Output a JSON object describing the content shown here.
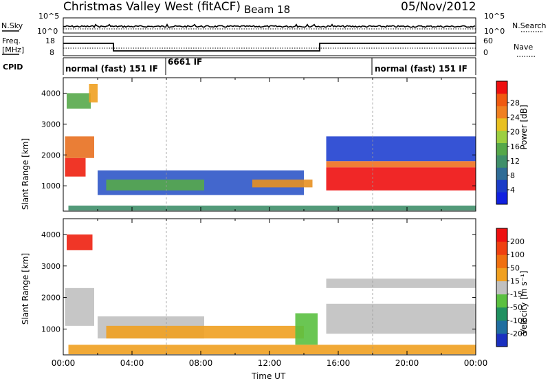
{
  "header": {
    "site": "Christmas Valley West (fitACF)",
    "beam": "Beam 18",
    "date": "05/Nov/2012"
  },
  "noise_panel": {
    "left_label": "N.Sky",
    "right_label": "N.Search",
    "ytick_top": "10^5",
    "ytick_bottom": "10^0"
  },
  "freq_panel": {
    "left_label_1": "Freq.",
    "left_label_2": "[MHz]",
    "right_label": "Nave",
    "left_ticks": [
      "18",
      "8"
    ],
    "right_ticks": [
      "60",
      "0"
    ]
  },
  "cpid": {
    "label": "CPID",
    "segments": [
      {
        "start": 0,
        "end": 6.0,
        "text": "normal (fast) 151 IF"
      },
      {
        "start": 6.0,
        "end": 18.0,
        "text": "6661 IF"
      },
      {
        "start": 18.0,
        "end": 24.0,
        "text": "normal (fast) 151 IF"
      }
    ]
  },
  "chart_data": [
    {
      "type": "heatmap",
      "name": "power",
      "ylabel": "Slant Range [km]",
      "ylim": [
        180,
        4500
      ],
      "yticks": [
        1000,
        2000,
        3000,
        4000
      ],
      "xlim": [
        0,
        24
      ],
      "colorbar": {
        "label": "Power [dB]",
        "ticks": [
          "4",
          "8",
          "12",
          "16",
          "20",
          "24",
          "28"
        ],
        "colors": [
          "#1020e0",
          "#1a3cc8",
          "#2f6c96",
          "#3f8f6a",
          "#56a84a",
          "#9ccf40",
          "#e8c020",
          "#f08020",
          "#f05a10",
          "#ee1010"
        ]
      },
      "regions": [
        {
          "t0": 0.1,
          "t1": 1.3,
          "r0": 1300,
          "r1": 1900,
          "color": "#ee2010"
        },
        {
          "t0": 0.1,
          "t1": 1.8,
          "r0": 1900,
          "r1": 2600,
          "color": "#e87020"
        },
        {
          "t0": 0.2,
          "t1": 1.6,
          "r0": 3500,
          "r1": 4000,
          "color": "#56a84a"
        },
        {
          "t0": 1.5,
          "t1": 2.0,
          "r0": 3700,
          "r1": 4300,
          "color": "#f0a020"
        },
        {
          "t0": 2.0,
          "t1": 14.0,
          "r0": 700,
          "r1": 1500,
          "color": "#2f56c8"
        },
        {
          "t0": 2.5,
          "t1": 8.2,
          "r0": 850,
          "r1": 1200,
          "color": "#56a84a"
        },
        {
          "t0": 11.0,
          "t1": 14.5,
          "r0": 950,
          "r1": 1200,
          "color": "#e89020"
        },
        {
          "t0": 0.3,
          "t1": 24.0,
          "r0": 200,
          "r1": 360,
          "color": "#3f8f6a"
        },
        {
          "t0": 15.3,
          "t1": 24.0,
          "r0": 850,
          "r1": 1600,
          "color": "#ee1010"
        },
        {
          "t0": 15.3,
          "t1": 24.0,
          "r0": 1600,
          "r1": 1800,
          "color": "#f07020"
        },
        {
          "t0": 15.3,
          "t1": 24.0,
          "r0": 1800,
          "r1": 2600,
          "color": "#2040d0"
        }
      ]
    },
    {
      "type": "heatmap",
      "name": "velocity",
      "ylabel": "Slant Range [km]",
      "xlabel": "Time UT",
      "ylim": [
        180,
        4500
      ],
      "yticks": [
        1000,
        2000,
        3000,
        4000
      ],
      "xlim": [
        0,
        24
      ],
      "xticks": [
        "00:00",
        "04:00",
        "08:00",
        "12:00",
        "16:00",
        "20:00",
        "00:00"
      ],
      "colorbar": {
        "label": "Velocity [m s⁻¹]",
        "ticks": [
          "200",
          "100",
          "50",
          "15",
          "-15",
          "-50",
          "-100",
          "-200"
        ],
        "colors": [
          "#1a30c0",
          "#1f6ea0",
          "#1f9060",
          "#5ac040",
          "#c0c0c0",
          "#f0a020",
          "#f07010",
          "#f04010",
          "#ee1010"
        ]
      },
      "regions": [
        {
          "t0": 0.1,
          "t1": 1.8,
          "r0": 1100,
          "r1": 2300,
          "color": "#c0c0c0"
        },
        {
          "t0": 0.2,
          "t1": 1.7,
          "r0": 3500,
          "r1": 4000,
          "color": "#ee2010"
        },
        {
          "t0": 2.0,
          "t1": 8.2,
          "r0": 700,
          "r1": 1400,
          "color": "#c0c0c0"
        },
        {
          "t0": 2.5,
          "t1": 14.0,
          "r0": 700,
          "r1": 1100,
          "color": "#f0a020"
        },
        {
          "t0": 13.5,
          "t1": 14.8,
          "r0": 500,
          "r1": 1500,
          "color": "#5ac040"
        },
        {
          "t0": 0.3,
          "t1": 24.0,
          "r0": 200,
          "r1": 500,
          "color": "#f0a020"
        },
        {
          "t0": 15.3,
          "t1": 24.0,
          "r0": 850,
          "r1": 1800,
          "color": "#c0c0c0"
        },
        {
          "t0": 15.3,
          "t1": 24.0,
          "r0": 2300,
          "r1": 2600,
          "color": "#c0c0c0"
        }
      ]
    }
  ]
}
